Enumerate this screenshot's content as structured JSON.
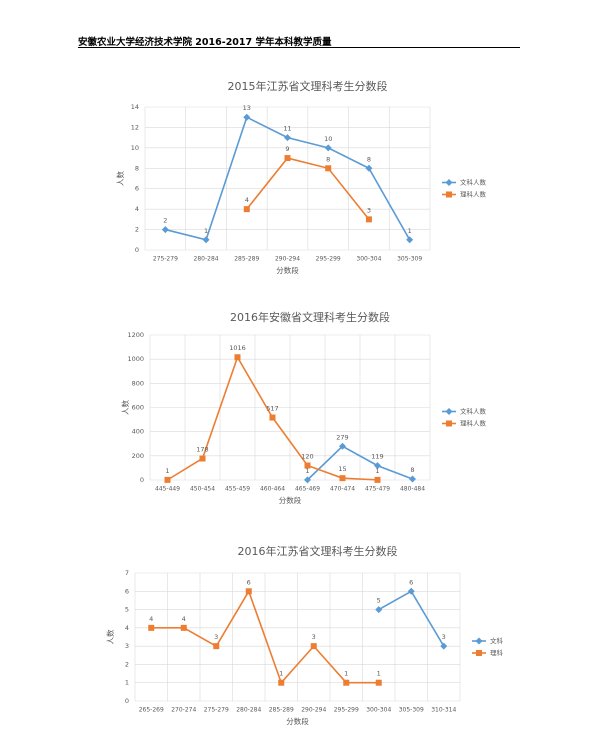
{
  "header": {
    "title": "安徽农业大学经济技术学院 2016-2017 学年本科教学质量"
  },
  "chart_data": [
    {
      "type": "line",
      "title": "2015年江苏省文理科考生分数段",
      "x_label": "分数段",
      "y_label": "人数",
      "categories": [
        "275-279",
        "280-284",
        "285-289",
        "290-294",
        "295-299",
        "300-304",
        "305-309"
      ],
      "series": [
        {
          "name": "文科人数",
          "color": "#5b9bd5",
          "marker": "diamond",
          "values": [
            2,
            1,
            13,
            11,
            10,
            8,
            1
          ]
        },
        {
          "name": "理科人数",
          "color": "#ed7d31",
          "marker": "square",
          "values": [
            null,
            null,
            4,
            9,
            8,
            3,
            null
          ]
        }
      ],
      "ylim": [
        0,
        14
      ],
      "yticks": [
        0,
        2,
        4,
        6,
        8,
        10,
        12,
        14
      ],
      "grid": true,
      "legend": "right"
    },
    {
      "type": "line",
      "title": "2016年安徽省文理科考生分数段",
      "x_label": "分数段",
      "y_label": "人数",
      "categories": [
        "445-449",
        "450-454",
        "455-459",
        "460-464",
        "465-469",
        "470-474",
        "475-479",
        "480-484"
      ],
      "series": [
        {
          "name": "文科人数",
          "color": "#5b9bd5",
          "marker": "diamond",
          "values": [
            null,
            null,
            null,
            null,
            1,
            279,
            119,
            8
          ]
        },
        {
          "name": "理科人数",
          "color": "#ed7d31",
          "marker": "square",
          "values": [
            1,
            178,
            1016,
            517,
            120,
            15,
            1,
            null
          ]
        }
      ],
      "ylim": [
        0,
        1200
      ],
      "yticks": [
        0,
        200,
        400,
        600,
        800,
        1000,
        1200
      ],
      "grid": true,
      "legend": "right"
    },
    {
      "type": "line",
      "title": "2016年江苏省文理科考生分数段",
      "x_label": "分数段",
      "y_label": "人数",
      "categories": [
        "265-269",
        "270-274",
        "275-279",
        "280-284",
        "285-289",
        "290-294",
        "295-299",
        "300-304",
        "305-309",
        "310-314"
      ],
      "series": [
        {
          "name": "文科",
          "color": "#5b9bd5",
          "marker": "diamond",
          "values": [
            null,
            null,
            null,
            null,
            null,
            null,
            null,
            5,
            6,
            3
          ]
        },
        {
          "name": "理科",
          "color": "#ed7d31",
          "marker": "square",
          "values": [
            4,
            4,
            3,
            6,
            1,
            3,
            1,
            1,
            null,
            null
          ]
        }
      ],
      "ylim": [
        0,
        7
      ],
      "yticks": [
        0,
        1,
        2,
        3,
        4,
        5,
        6,
        7
      ],
      "grid": true,
      "legend": "right"
    }
  ]
}
